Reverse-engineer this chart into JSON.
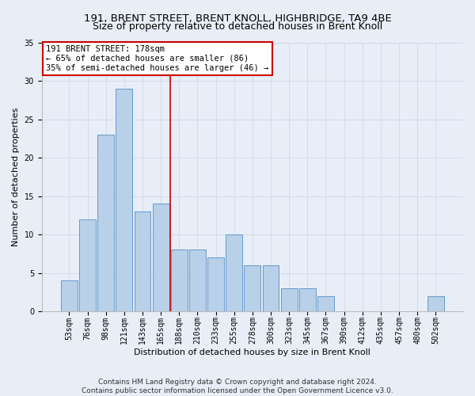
{
  "title": "191, BRENT STREET, BRENT KNOLL, HIGHBRIDGE, TA9 4BE",
  "subtitle": "Size of property relative to detached houses in Brent Knoll",
  "xlabel": "Distribution of detached houses by size in Brent Knoll",
  "ylabel": "Number of detached properties",
  "categories": [
    "53sqm",
    "76sqm",
    "98sqm",
    "121sqm",
    "143sqm",
    "165sqm",
    "188sqm",
    "210sqm",
    "233sqm",
    "255sqm",
    "278sqm",
    "300sqm",
    "323sqm",
    "345sqm",
    "367sqm",
    "390sqm",
    "412sqm",
    "435sqm",
    "457sqm",
    "480sqm",
    "502sqm"
  ],
  "values": [
    4,
    12,
    23,
    29,
    13,
    14,
    8,
    8,
    7,
    10,
    6,
    6,
    3,
    3,
    2,
    0,
    0,
    0,
    0,
    0,
    2
  ],
  "bar_color": "#b8d0e8",
  "bar_edgecolor": "#6699cc",
  "vline_x": 5.5,
  "vline_color": "#cc0000",
  "annotation_text": "191 BRENT STREET: 178sqm\n← 65% of detached houses are smaller (86)\n35% of semi-detached houses are larger (46) →",
  "annotation_box_color": "#ffffff",
  "annotation_box_edgecolor": "#cc0000",
  "ylim": [
    0,
    35
  ],
  "yticks": [
    0,
    5,
    10,
    15,
    20,
    25,
    30,
    35
  ],
  "grid_color": "#d0d8e8",
  "background_color": "#e8eef8",
  "footer_text": "Contains HM Land Registry data © Crown copyright and database right 2024.\nContains public sector information licensed under the Open Government Licence v3.0.",
  "title_fontsize": 9.5,
  "xlabel_fontsize": 8,
  "ylabel_fontsize": 8,
  "tick_fontsize": 7,
  "annotation_fontsize": 7.5,
  "footer_fontsize": 6.5
}
